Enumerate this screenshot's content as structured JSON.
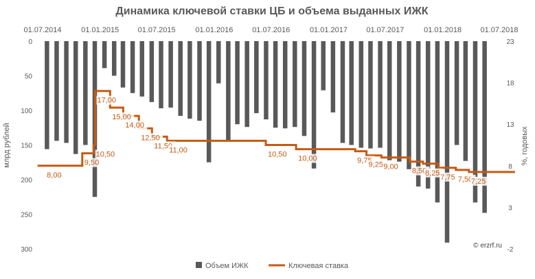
{
  "watermark": "© erzrf.ru",
  "chart_data": {
    "type": "bar+line",
    "title": "Динамика ключевой ставки ЦБ и объема выданных ИЖК",
    "x_tick_labels": [
      "01.07.2014",
      "01.01.2015",
      "01.07.2015",
      "01.01.2016",
      "01.07.2016",
      "01.01.2017",
      "01.07.2017",
      "01.01.2018",
      "01.07.2018"
    ],
    "y_left": {
      "label": "млрд рублей",
      "inverted": true,
      "range": [
        0,
        300
      ],
      "ticks": [
        0,
        50,
        100,
        150,
        200,
        250,
        300
      ]
    },
    "y_right": {
      "label": "%, годовых",
      "range": [
        -2,
        23
      ],
      "ticks": [
        -2,
        3,
        8,
        13,
        18,
        23
      ]
    },
    "bars": {
      "name": "Объем ИЖК",
      "color": "#595959",
      "months": [
        "2014-07",
        "2014-08",
        "2014-09",
        "2014-10",
        "2014-11",
        "2014-12",
        "2015-01",
        "2015-02",
        "2015-03",
        "2015-04",
        "2015-05",
        "2015-06",
        "2015-07",
        "2015-08",
        "2015-09",
        "2015-10",
        "2015-11",
        "2015-12",
        "2016-01",
        "2016-02",
        "2016-03",
        "2016-04",
        "2016-05",
        "2016-06",
        "2016-07",
        "2016-08",
        "2016-09",
        "2016-10",
        "2016-11",
        "2016-12",
        "2017-01",
        "2017-02",
        "2017-03",
        "2017-04",
        "2017-05",
        "2017-06",
        "2017-07",
        "2017-08",
        "2017-09",
        "2017-10",
        "2017-11",
        "2017-12",
        "2018-01",
        "2018-02",
        "2018-03",
        "2018-04",
        "2018-05",
        "2018-06"
      ],
      "values": [
        156,
        144,
        147,
        163,
        150,
        225,
        39,
        50,
        67,
        75,
        80,
        88,
        97,
        96,
        108,
        112,
        115,
        175,
        61,
        143,
        120,
        124,
        104,
        113,
        125,
        126,
        124,
        137,
        184,
        71,
        103,
        147,
        150,
        154,
        155,
        154,
        172,
        174,
        185,
        210,
        213,
        233,
        291,
        150,
        173,
        233,
        248,
        0
      ]
    },
    "rate": {
      "name": "Ключевая ставка",
      "color": "#c55a11",
      "steps": [
        {
          "from": "2014-06-15",
          "value": 8.0
        },
        {
          "from": "2014-07-28",
          "value": 8.0
        },
        {
          "from": "2014-11-05",
          "value": 9.5
        },
        {
          "from": "2014-12-12",
          "value": 10.5
        },
        {
          "from": "2014-12-16",
          "value": 17.0
        },
        {
          "from": "2015-02-02",
          "value": 15.0
        },
        {
          "from": "2015-03-16",
          "value": 14.0
        },
        {
          "from": "2015-05-05",
          "value": 12.5
        },
        {
          "from": "2015-06-16",
          "value": 11.5
        },
        {
          "from": "2015-08-03",
          "value": 11.0
        },
        {
          "from": "2016-06-14",
          "value": 10.5
        },
        {
          "from": "2016-09-19",
          "value": 10.0
        },
        {
          "from": "2017-03-27",
          "value": 9.75
        },
        {
          "from": "2017-05-02",
          "value": 9.25
        },
        {
          "from": "2017-06-19",
          "value": 9.0
        },
        {
          "from": "2017-09-18",
          "value": 8.5
        },
        {
          "from": "2017-10-30",
          "value": 8.25
        },
        {
          "from": "2017-12-18",
          "value": 7.75
        },
        {
          "from": "2018-02-12",
          "value": 7.5
        },
        {
          "from": "2018-03-26",
          "value": 7.25
        }
      ],
      "end": "2018-08-20"
    },
    "rate_labels": [
      {
        "text": "8,00",
        "date": "2014-07-08",
        "value": 8.0
      },
      {
        "text": "9,50",
        "date": "2014-11-05",
        "value": 9.5
      },
      {
        "text": "10,50",
        "date": "2014-12-12",
        "value": 10.5
      },
      {
        "text": "17,00",
        "date": "2014-12-16",
        "value": 17.0
      },
      {
        "text": "15,00",
        "date": "2015-02-02",
        "value": 15.0
      },
      {
        "text": "14,00",
        "date": "2015-03-16",
        "value": 14.0
      },
      {
        "text": "12,50",
        "date": "2015-05-05",
        "value": 12.5
      },
      {
        "text": "11,50",
        "date": "2015-06-16",
        "value": 11.5
      },
      {
        "text": "11,00",
        "date": "2015-08-03",
        "value": 11.0
      },
      {
        "text": "10,50",
        "date": "2016-06-14",
        "value": 10.5
      },
      {
        "text": "10,00",
        "date": "2016-09-19",
        "value": 10.0
      },
      {
        "text": "9,75",
        "date": "2017-03-27",
        "value": 9.75
      },
      {
        "text": "9,25",
        "date": "2017-05-02",
        "value": 9.25
      },
      {
        "text": "9,00",
        "date": "2017-06-19",
        "value": 9.0
      },
      {
        "text": "8,50",
        "date": "2017-09-18",
        "value": 8.5
      },
      {
        "text": "8,25",
        "date": "2017-10-30",
        "value": 8.25
      },
      {
        "text": "7,75",
        "date": "2017-12-18",
        "value": 7.75
      },
      {
        "text": "7,50",
        "date": "2018-02-12",
        "value": 7.5
      },
      {
        "text": "7,25",
        "date": "2018-03-26",
        "value": 7.25
      }
    ],
    "legend": {
      "position": "bottom",
      "items": [
        "Объем ИЖК",
        "Ключевая ставка"
      ]
    }
  }
}
